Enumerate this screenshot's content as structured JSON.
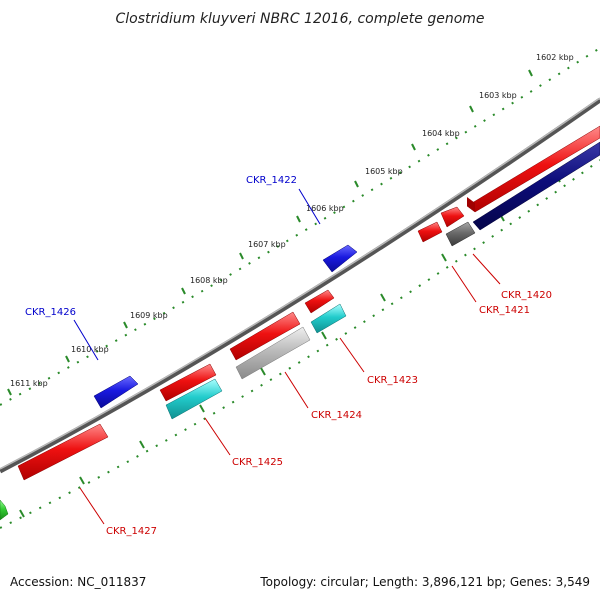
{
  "title": "Clostridium kluyveri NBRC 12016, complete genome",
  "footer": {
    "accession": "Accession: NC_011837",
    "topology": "Topology: circular; Length: 3,896,121 bp; Genes: 3,549"
  },
  "colors": {
    "red": "#ee1111",
    "blue": "#1a1ae0",
    "navy": "#0c0c7a",
    "cyan": "#22cccc",
    "gray": "#6a6a6a",
    "light_gray": "#bbbbbb",
    "green": "#33cc33",
    "backbone": "#777777",
    "tick": "#2a8a2a",
    "label_red": "#cc0000",
    "label_blue": "#0000cc"
  },
  "kbp_marks": [
    "1602 kbp",
    "1603 kbp",
    "1604 kbp",
    "1605 kbp",
    "1606 kbp",
    "1607 kbp",
    "1608 kbp",
    "1609 kbp",
    "1610 kbp",
    "1611 kbp"
  ],
  "gene_labels": [
    {
      "id": "CKR_1420",
      "color": "red"
    },
    {
      "id": "CKR_1421",
      "color": "red"
    },
    {
      "id": "CKR_1422",
      "color": "blue"
    },
    {
      "id": "CKR_1423",
      "color": "red"
    },
    {
      "id": "CKR_1424",
      "color": "red"
    },
    {
      "id": "CKR_1425",
      "color": "red"
    },
    {
      "id": "CKR_1426",
      "color": "blue"
    },
    {
      "id": "CKR_1427",
      "color": "red"
    }
  ]
}
